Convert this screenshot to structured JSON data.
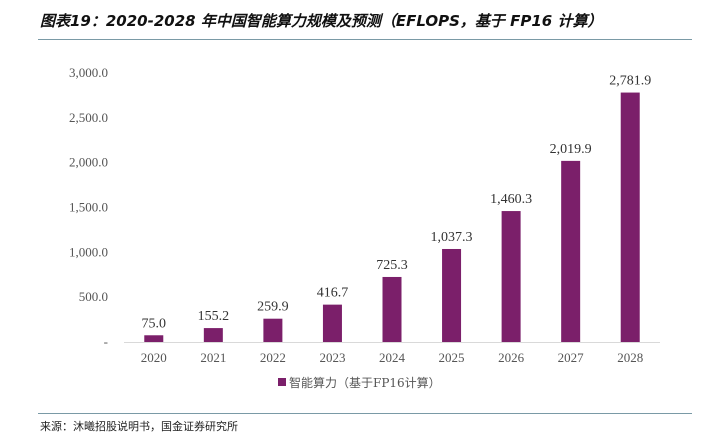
{
  "title": "图表19：2020-2028 年中国智能算力规模及预测（EFLOPS，基于 FP16 计算）",
  "source": "来源：沐曦招股说明书，国金证券研究所",
  "chart_data": {
    "type": "bar",
    "title": "图表19：2020-2028 年中国智能算力规模及预测（EFLOPS，基于 FP16 计算）",
    "xlabel": "",
    "ylabel": "",
    "categories": [
      "2020",
      "2021",
      "2022",
      "2023",
      "2024",
      "2025",
      "2026",
      "2027",
      "2028"
    ],
    "series": [
      {
        "name": "智能算力（基于FP16计算）",
        "color": "#7b1f6a",
        "values": [
          75.0,
          155.2,
          259.9,
          416.7,
          725.3,
          1037.3,
          1460.3,
          2019.9,
          2781.9
        ],
        "labels": [
          "75.0",
          "155.2",
          "259.9",
          "416.7",
          "725.3",
          "1,037.3",
          "1,460.3",
          "2,019.9",
          "2,781.9"
        ]
      }
    ],
    "ylim": [
      0,
      3000
    ],
    "yticks": [
      0,
      500,
      1000,
      1500,
      2000,
      2500,
      3000
    ],
    "ytick_labels": [
      "-",
      "500.0",
      "1,000.0",
      "1,500.0",
      "2,000.0",
      "2,500.0",
      "3,000.0"
    ],
    "grid": false,
    "legend": {
      "position": "bottom-center",
      "entries": [
        "智能算力（基于FP16计算）"
      ]
    }
  }
}
